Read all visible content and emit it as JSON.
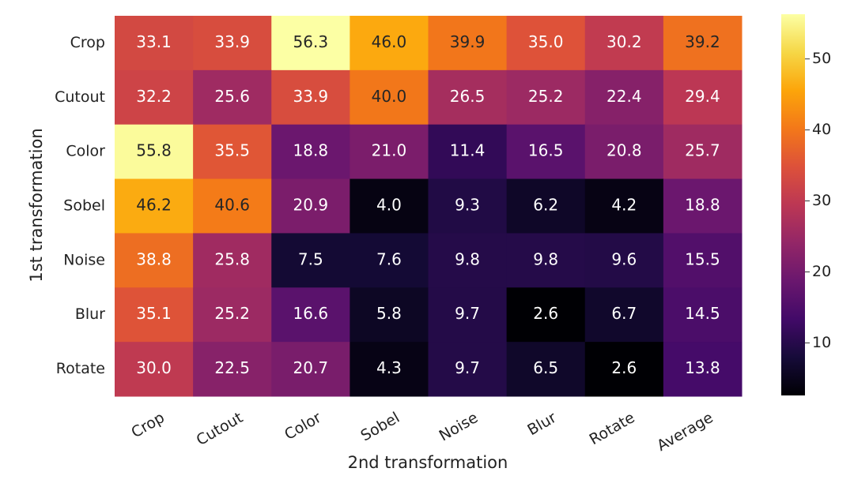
{
  "chart_data": {
    "type": "heatmap",
    "xlabel": "2nd transformation",
    "ylabel": "1st transformation",
    "x_categories": [
      "Crop",
      "Cutout",
      "Color",
      "Sobel",
      "Noise",
      "Blur",
      "Rotate",
      "Average"
    ],
    "y_categories": [
      "Crop",
      "Cutout",
      "Color",
      "Sobel",
      "Noise",
      "Blur",
      "Rotate"
    ],
    "values": [
      [
        33.1,
        33.9,
        56.3,
        46,
        39.9,
        35,
        30.2,
        39.2
      ],
      [
        32.2,
        25.6,
        33.9,
        40,
        26.5,
        25.2,
        22.4,
        29.4
      ],
      [
        55.8,
        35.5,
        18.8,
        21,
        11.4,
        16.5,
        20.8,
        25.7
      ],
      [
        46.2,
        40.6,
        20.9,
        4,
        9.3,
        6.2,
        4.2,
        18.8
      ],
      [
        38.8,
        25.8,
        7.5,
        7.6,
        9.8,
        9.8,
        9.6,
        15.5
      ],
      [
        35.1,
        25.2,
        16.6,
        5.8,
        9.7,
        2.6,
        6.7,
        14.5
      ],
      [
        30,
        22.5,
        20.7,
        4.3,
        9.7,
        6.5,
        2.6,
        13.8
      ]
    ],
    "value_labels": [
      [
        "33.1",
        "33.9",
        "56.3",
        "46.0",
        "39.9",
        "35.0",
        "30.2",
        "39.2"
      ],
      [
        "32.2",
        "25.6",
        "33.9",
        "40.0",
        "26.5",
        "25.2",
        "22.4",
        "29.4"
      ],
      [
        "55.8",
        "35.5",
        "18.8",
        "21.0",
        "11.4",
        "16.5",
        "20.8",
        "25.7"
      ],
      [
        "46.2",
        "40.6",
        "20.9",
        "4.0",
        "9.3",
        "6.2",
        "4.2",
        "18.8"
      ],
      [
        "38.8",
        "25.8",
        "7.5",
        "7.6",
        "9.8",
        "9.8",
        "9.6",
        "15.5"
      ],
      [
        "35.1",
        "25.2",
        "16.6",
        "5.8",
        "9.7",
        "2.6",
        "6.7",
        "14.5"
      ],
      [
        "30.0",
        "22.5",
        "20.7",
        "4.3",
        "9.7",
        "6.5",
        "2.6",
        "13.8"
      ]
    ],
    "colormap": "inferno",
    "clim": [
      2.6,
      56.3
    ],
    "cticks": [
      10,
      20,
      30,
      40,
      50
    ]
  }
}
